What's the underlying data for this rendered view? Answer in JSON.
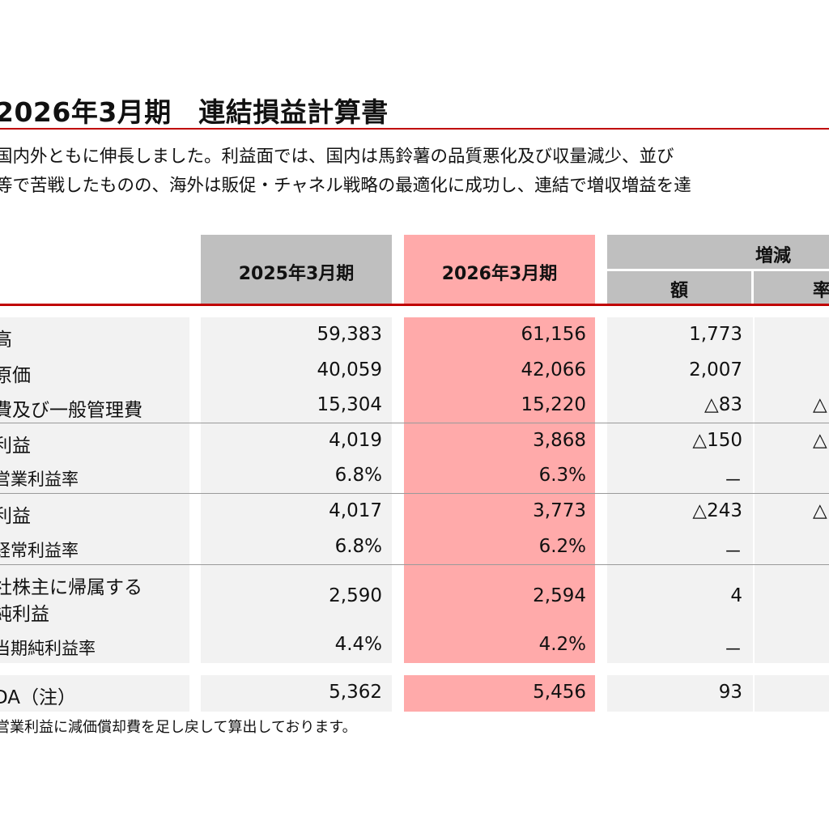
{
  "title": "2026年3月期　連結損益計算書",
  "summary": {
    "line1": "国内外ともに伸長しました。利益面では、国内は馬鈴薯の品質悪化及び収量減少、並び",
    "line2": "等で苦戦したものの、海外は販促・チャネル戦略の最適化に成功し、連結で増収増益を達"
  },
  "unit_label": "（",
  "headers": {
    "col_2025": "2025年3月期",
    "col_2026": "2026年3月期",
    "change": "増減",
    "amount": "額",
    "rate": "率"
  },
  "rows": [
    {
      "label": "高",
      "v2025": "59,383",
      "v2026": "61,156",
      "diff": "1,773",
      "rate": ""
    },
    {
      "label": "原価",
      "v2025": "40,059",
      "v2026": "42,066",
      "diff": "2,007",
      "rate": ""
    },
    {
      "label": "費及び一般管理費",
      "v2025": "15,304",
      "v2026": "15,220",
      "diff": "△83",
      "rate": "△"
    },
    {
      "label": "利益",
      "v2025": "4,019",
      "v2026": "3,868",
      "diff": "△150",
      "rate": "△"
    },
    {
      "label": "営業利益率",
      "v2025": "6.8%",
      "v2026": "6.3%",
      "diff": "－",
      "rate": ""
    },
    {
      "label": "利益",
      "v2025": "4,017",
      "v2026": "3,773",
      "diff": "△243",
      "rate": "△"
    },
    {
      "label": "経常利益率",
      "v2025": "6.8%",
      "v2026": "6.2%",
      "diff": "－",
      "rate": ""
    },
    {
      "label": "社株主に帰属する",
      "label2": "純利益",
      "v2025": "2,590",
      "v2026": "2,594",
      "diff": "4",
      "rate": ""
    },
    {
      "label": "当期純利益率",
      "v2025": "4.4%",
      "v2026": "4.2%",
      "diff": "－",
      "rate": ""
    },
    {
      "label": "DA（注）",
      "v2025": "5,362",
      "v2026": "5,456",
      "diff": "93",
      "rate": ""
    }
  ],
  "footnote": "営業利益に減価償却費を足し戻して算出しております。",
  "colors": {
    "accent_red": "#c00000",
    "highlight_pink": "#ffaaaa",
    "header_gray": "#bfbfbf",
    "row_gray": "#f2f2f2"
  }
}
